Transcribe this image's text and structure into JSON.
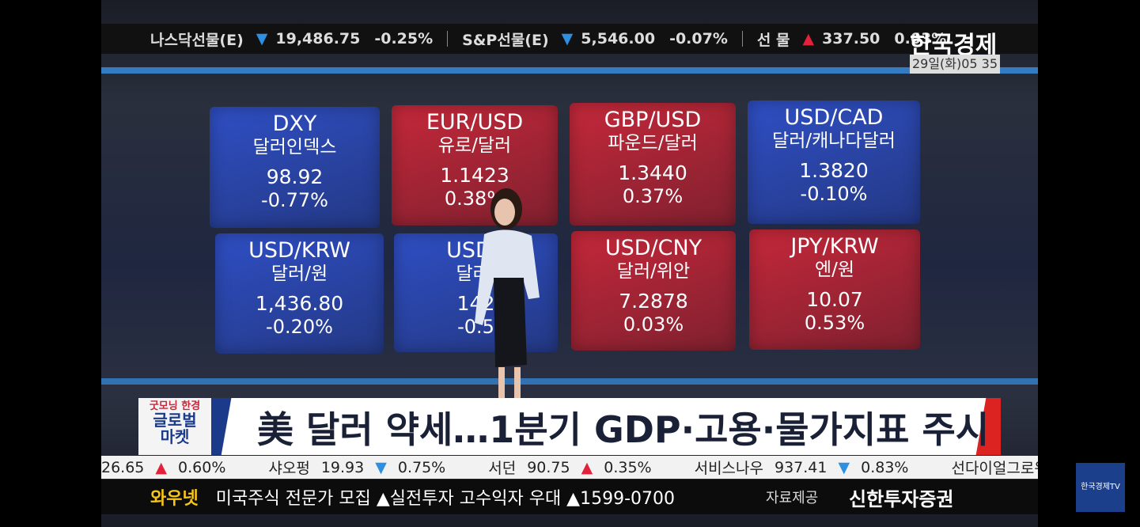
{
  "top_ticker": {
    "items": [
      {
        "name": "나스닥선물(E)",
        "arrow": "▼",
        "value": "19,486.75",
        "change": "-0.25%"
      },
      {
        "name": "S&P선물(E)",
        "arrow": "▼",
        "value": "5,546.00",
        "change": "-0.07%"
      },
      {
        "name": "선 물",
        "arrow": "▲",
        "value": "337.50",
        "change": "0.03%"
      }
    ],
    "brand": "한국경제",
    "time": "29일(화)05 35"
  },
  "panels": [
    {
      "code": "DXY",
      "name": "달러인덱스",
      "value": "98.92",
      "change": "-0.77%",
      "color": "#2f4fc4"
    },
    {
      "code": "EUR/USD",
      "name": "유로/달러",
      "value": "1.1423",
      "change": "0.38%",
      "color": "#c4283a"
    },
    {
      "code": "GBP/USD",
      "name": "파운드/달러",
      "value": "1.3440",
      "change": "0.37%",
      "color": "#c4283a"
    },
    {
      "code": "USD/CAD",
      "name": "달러/캐나다달러",
      "value": "1.3820",
      "change": "-0.10%",
      "color": "#2f4fc4"
    },
    {
      "code": "USD/KRW",
      "name": "달러/원",
      "value": "1,436.80",
      "change": "-0.20%",
      "color": "#2f4fc4"
    },
    {
      "code": "USD/J",
      "name": "달러/",
      "value": "142",
      "change": "-0.5",
      "color": "#2f4fc4"
    },
    {
      "code": "USD/CNY",
      "name": "달러/위안",
      "value": "7.2878",
      "change": "0.03%",
      "color": "#c4283a"
    },
    {
      "code": "JPY/KRW",
      "name": "엔/원",
      "value": "10.07",
      "change": "0.53%",
      "color": "#c4283a"
    }
  ],
  "program": {
    "line1": "굿모닝 한경",
    "line2": "글로벌",
    "line3": "마켓"
  },
  "headline": "美 달러 약세…1분기 GDP·고용·물가지표 주시",
  "stock_ticker": [
    {
      "name": "",
      "value": "26.65",
      "arrow": "▲",
      "change": "0.60%"
    },
    {
      "name": "샤오펑",
      "value": "19.93",
      "arrow": "▼",
      "change": "0.75%"
    },
    {
      "name": "서던",
      "value": "90.75",
      "arrow": "▲",
      "change": "0.35%"
    },
    {
      "name": "서비스나우",
      "value": "937.41",
      "arrow": "▼",
      "change": "0.83%"
    },
    {
      "name": "선다이얼그로워",
      "value": "",
      "arrow": "",
      "change": ""
    }
  ],
  "bottom_bar": {
    "label": "와우넷",
    "message": "미국주식 전문가 모집 ▲실전투자 고수익자 우대 ▲1599-0700",
    "source_label": "자료제공",
    "source": "신한투자증권"
  },
  "channel_logo": "한국경제TV"
}
